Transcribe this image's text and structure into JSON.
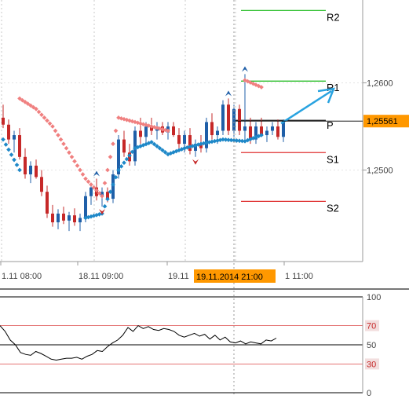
{
  "chart_data": [
    {
      "type": "candlestick",
      "title": "",
      "y_range": [
        1.2395,
        1.2695
      ],
      "y_ticks": [
        {
          "value": 1.26,
          "label": "1,2600"
        },
        {
          "value": 1.25,
          "label": "1,2500"
        }
      ],
      "current_price": {
        "value": 1.25561,
        "label": "1,25561"
      },
      "x_ticks": [
        "1.11 08:00",
        "18.11 09:00",
        "19.11",
        "1 11:00"
      ],
      "crosshair_label": "19.11.2014 21:00",
      "pivot_levels": [
        {
          "name": "R2",
          "value": 1.2683,
          "color": "#16b816"
        },
        {
          "name": "R1",
          "value": 1.2602,
          "color": "#16b816"
        },
        {
          "name": "P",
          "value": 1.2557,
          "color": "#000000"
        },
        {
          "name": "S1",
          "value": 1.252,
          "color": "#e03030"
        },
        {
          "name": "S2",
          "value": 1.2464,
          "color": "#e03030"
        }
      ],
      "series": [
        {
          "name": "",
          "kind": "ohlc",
          "bull_color": "#1f5fa8",
          "bear_color": "#c62828",
          "values": [
            [
              1.256,
              1.2575,
              1.2548,
              1.2552
            ],
            [
              1.2552,
              1.2558,
              1.253,
              1.2535
            ],
            [
              1.2535,
              1.2545,
              1.252,
              1.254
            ],
            [
              1.254,
              1.2548,
              1.2512,
              1.2515
            ],
            [
              1.2515,
              1.2525,
              1.249,
              1.2495
            ],
            [
              1.2495,
              1.251,
              1.2485,
              1.2505
            ],
            [
              1.2505,
              1.2512,
              1.249,
              1.2492
            ],
            [
              1.2492,
              1.25,
              1.247,
              1.2475
            ],
            [
              1.2475,
              1.2482,
              1.2445,
              1.245
            ],
            [
              1.245,
              1.246,
              1.2435,
              1.244
            ],
            [
              1.244,
              1.2455,
              1.2432,
              1.245
            ],
            [
              1.245,
              1.2458,
              1.2438,
              1.2442
            ],
            [
              1.2442,
              1.2452,
              1.243,
              1.2448
            ],
            [
              1.2448,
              1.2456,
              1.2436,
              1.244
            ],
            [
              1.244,
              1.245,
              1.243,
              1.2445
            ],
            [
              1.2445,
              1.2475,
              1.244,
              1.247
            ],
            [
              1.247,
              1.2485,
              1.246,
              1.248
            ],
            [
              1.248,
              1.249,
              1.2465,
              1.247
            ],
            [
              1.247,
              1.248,
              1.2458,
              1.2475
            ],
            [
              1.2475,
              1.248,
              1.2463,
              1.2467
            ],
            [
              1.2467,
              1.25,
              1.2462,
              1.2495
            ],
            [
              1.2495,
              1.254,
              1.249,
              1.2535
            ],
            [
              1.2535,
              1.2545,
              1.2515,
              1.252
            ],
            [
              1.252,
              1.253,
              1.2505,
              1.251
            ],
            [
              1.251,
              1.255,
              1.2505,
              1.2545
            ],
            [
              1.2545,
              1.256,
              1.253,
              1.2538
            ],
            [
              1.2538,
              1.2555,
              1.253,
              1.255
            ],
            [
              1.255,
              1.256,
              1.254,
              1.2545
            ],
            [
              1.2545,
              1.2555,
              1.2535,
              1.255
            ],
            [
              1.255,
              1.2555,
              1.254,
              1.2543
            ],
            [
              1.2543,
              1.2555,
              1.2535,
              1.255
            ],
            [
              1.255,
              1.2555,
              1.2538,
              1.254
            ],
            [
              1.254,
              1.2548,
              1.2525,
              1.253
            ],
            [
              1.253,
              1.2545,
              1.252,
              1.254
            ],
            [
              1.254,
              1.2548,
              1.2518,
              1.2522
            ],
            [
              1.2522,
              1.2535,
              1.2515,
              1.253
            ],
            [
              1.253,
              1.254,
              1.252,
              1.2525
            ],
            [
              1.2525,
              1.256,
              1.252,
              1.2555
            ],
            [
              1.2555,
              1.2565,
              1.2535,
              1.254
            ],
            [
              1.254,
              1.255,
              1.253,
              1.2545
            ],
            [
              1.2545,
              1.258,
              1.254,
              1.2575
            ],
            [
              1.2575,
              1.2582,
              1.254,
              1.2545
            ],
            [
              1.2545,
              1.2575,
              1.2538,
              1.257
            ],
            [
              1.257,
              1.2575,
              1.254,
              1.2545
            ],
            [
              1.2545,
              1.261,
              1.2535,
              1.255
            ],
            [
              1.255,
              1.256,
              1.253,
              1.2535
            ],
            [
              1.2535,
              1.2555,
              1.253,
              1.255
            ],
            [
              1.255,
              1.256,
              1.2538,
              1.254
            ],
            [
              1.254,
              1.255,
              1.2532,
              1.2545
            ],
            [
              1.2545,
              1.2555,
              1.254,
              1.255
            ],
            [
              1.255,
              1.2558,
              1.2535,
              1.2538
            ],
            [
              1.2538,
              1.2558,
              1.2532,
              1.2556
            ]
          ]
        },
        {
          "name": "",
          "kind": "sar-above",
          "color": "#f08080",
          "values": [
            [
              3,
              1.2582
            ],
            [
              6,
              1.257
            ],
            [
              9,
              1.255
            ],
            [
              12,
              1.252
            ],
            [
              15,
              1.249
            ],
            [
              18,
              1.247
            ],
            [
              21,
              1.256
            ],
            [
              24,
              1.2555
            ],
            [
              27,
              1.255
            ],
            [
              30,
              1.2545
            ],
            [
              44,
              1.2603
            ],
            [
              47,
              1.2595
            ]
          ]
        },
        {
          "name": "",
          "kind": "sar-below",
          "color": "#1e88c8",
          "values": [
            [
              0,
              1.2535
            ],
            [
              3,
              1.25
            ],
            [
              15,
              1.2445
            ],
            [
              18,
              1.245
            ],
            [
              21,
              1.25
            ],
            [
              24,
              1.2525
            ],
            [
              27,
              1.2532
            ],
            [
              30,
              1.2518
            ],
            [
              33,
              1.2525
            ],
            [
              36,
              1.253
            ],
            [
              40,
              1.2535
            ],
            [
              44,
              1.2533
            ],
            [
              47,
              1.254
            ]
          ]
        }
      ]
    },
    {
      "type": "line",
      "title": "",
      "y_range": [
        0,
        100
      ],
      "y_ticks": [
        {
          "value": 100,
          "label": "100"
        },
        {
          "value": 70,
          "label": "70"
        },
        {
          "value": 50,
          "label": "50"
        },
        {
          "value": 30,
          "label": "30"
        },
        {
          "value": 0,
          "label": "0"
        }
      ],
      "reference_lines": [
        {
          "value": 70,
          "color": "#e06060"
        },
        {
          "value": 50,
          "color": "#000000"
        },
        {
          "value": 30,
          "color": "#e06060"
        }
      ],
      "series": [
        {
          "name": "",
          "color": "#000000",
          "values": [
            70,
            64,
            55,
            50,
            42,
            40,
            39,
            43,
            41,
            38,
            35,
            34,
            35,
            36,
            36,
            37,
            35,
            38,
            40,
            44,
            43,
            48,
            52,
            55,
            60,
            68,
            64,
            70,
            67,
            69,
            66,
            65,
            67,
            66,
            64,
            60,
            58,
            60,
            62,
            59,
            61,
            56,
            60,
            55,
            58,
            53,
            52,
            54,
            51,
            53,
            52,
            51,
            55,
            54,
            57
          ]
        }
      ]
    }
  ],
  "toolbar": {
    "arrow_color": "#29a3e0"
  }
}
